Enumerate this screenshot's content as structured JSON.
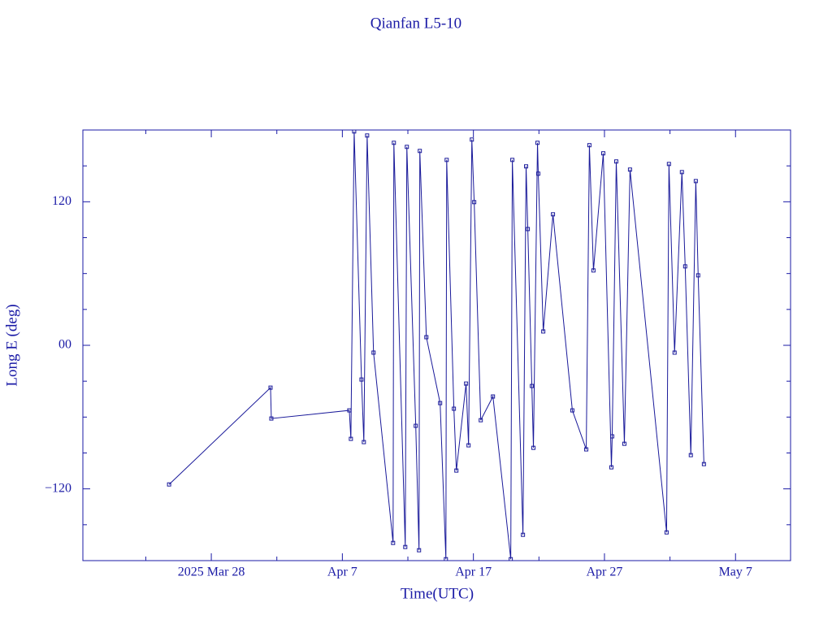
{
  "chart_data": {
    "type": "line",
    "title": "Qianfan L5-10",
    "x_label": "Time(UTC)",
    "y_label": "Long E (deg)",
    "color": "#1a1a9a",
    "xlim": [
      77.2,
      131.2
    ],
    "ylim": [
      -180,
      180
    ],
    "xticks": [
      {
        "value": 87,
        "label": "2025 Mar 28"
      },
      {
        "value": 97,
        "label": "Apr  7"
      },
      {
        "value": 107,
        "label": "Apr 17"
      },
      {
        "value": 117,
        "label": "Apr 27"
      },
      {
        "value": 127,
        "label": "May  7"
      }
    ],
    "xminorticks": [
      82,
      92,
      102,
      112,
      122
    ],
    "yticks": [
      {
        "value": -120,
        "label": "−120"
      },
      {
        "value": 0,
        "label": "00"
      },
      120
    ],
    "yminorticks": [
      -150,
      -90,
      -60,
      -30,
      30,
      60,
      90,
      150
    ],
    "x": [
      83.78,
      91.52,
      91.58,
      97.53,
      97.65,
      97.9,
      98.46,
      98.64,
      98.89,
      99.38,
      100.87,
      100.93,
      101.8,
      101.92,
      102.6,
      102.85,
      102.91,
      103.41,
      104.46,
      104.9,
      104.96,
      105.51,
      105.7,
      106.44,
      106.63,
      106.88,
      107.06,
      107.56,
      108.49,
      109.85,
      109.97,
      110.78,
      111.02,
      111.15,
      111.46,
      111.58,
      111.89,
      111.95,
      112.33,
      113.07,
      114.55,
      115.61,
      115.85,
      116.16,
      116.91,
      117.53,
      117.59,
      117.9,
      118.52,
      118.95,
      121.74,
      121.92,
      122.35,
      122.91,
      123.16,
      123.59,
      123.97,
      124.15,
      124.59
    ],
    "values": [
      -116.3,
      -35.4,
      -61.2,
      -54.4,
      -78.2,
      178.8,
      -28.6,
      -80.9,
      175.4,
      -6.1,
      -165.2,
      169.3,
      -168.6,
      165.9,
      -67.3,
      -171.3,
      162.5,
      6.8,
      -48.3,
      -178.8,
      155.0,
      -53.0,
      -104.7,
      -32.0,
      -83.6,
      172.0,
      119.7,
      -62.6,
      -42.8,
      -178.8,
      155.0,
      -158.4,
      149.6,
      97.2,
      -34.0,
      -85.7,
      169.3,
      143.5,
      11.6,
      109.5,
      -54.4,
      -87.0,
      167.3,
      62.6,
      160.5,
      -102.0,
      -76.1,
      153.7,
      -82.3,
      146.9,
      -156.4,
      151.6,
      -6.1,
      144.8,
      66.0,
      -91.8,
      137.3,
      58.5,
      -99.3
    ]
  }
}
